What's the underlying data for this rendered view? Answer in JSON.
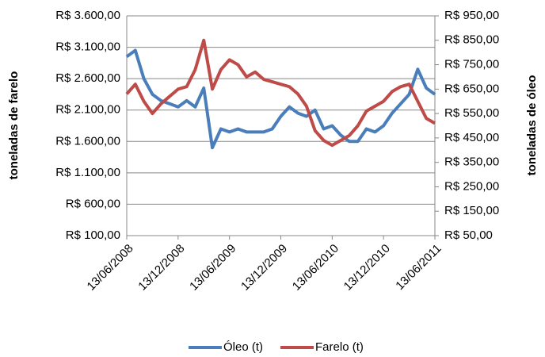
{
  "chart_data": {
    "type": "line",
    "y_label": "toneladas de farelo",
    "y2_label": "toneladas de óleo",
    "categories": [
      "13/06/2008",
      null,
      null,
      null,
      null,
      null,
      "13/12/2008",
      null,
      null,
      null,
      null,
      null,
      "13/06/2009",
      null,
      null,
      null,
      null,
      null,
      "13/12/2009",
      null,
      null,
      null,
      null,
      null,
      "13/06/2010",
      null,
      null,
      null,
      null,
      null,
      "13/12/2010",
      null,
      null,
      null,
      null,
      null,
      "13/06/2011"
    ],
    "series": [
      {
        "name": "Óleo (t)",
        "color": "#4a7ebb",
        "axis": "y",
        "values": [
          2950,
          3050,
          2600,
          2350,
          2250,
          2200,
          2150,
          2250,
          2150,
          2450,
          1500,
          1800,
          1750,
          1800,
          1750,
          1750,
          1750,
          1800,
          2000,
          2150,
          2050,
          2000,
          2100,
          1800,
          1850,
          1700,
          1600,
          1600,
          1800,
          1750,
          1850,
          2050,
          2200,
          2350,
          2750,
          2450,
          2350
        ]
      },
      {
        "name": "Farelo (t)",
        "color": "#be4b48",
        "axis": "y2",
        "values": [
          630,
          670,
          600,
          550,
          590,
          620,
          650,
          660,
          730,
          850,
          650,
          730,
          770,
          750,
          700,
          720,
          690,
          680,
          670,
          660,
          630,
          580,
          480,
          440,
          420,
          440,
          460,
          500,
          560,
          580,
          600,
          640,
          660,
          670,
          600,
          530,
          510
        ]
      }
    ],
    "ylim": [
      100,
      3600
    ],
    "yticks": [
      {
        "value": 100,
        "label": "R$ 100,00"
      },
      {
        "value": 600,
        "label": "R$ 600,00"
      },
      {
        "value": 1100,
        "label": "R$ 1.100,00"
      },
      {
        "value": 1600,
        "label": "R$ 1.600,00"
      },
      {
        "value": 2100,
        "label": "R$ 2.100,00"
      },
      {
        "value": 2600,
        "label": "R$ 2.600,00"
      },
      {
        "value": 3100,
        "label": "R$ 3.100,00"
      },
      {
        "value": 3600,
        "label": "R$ 3.600,00"
      }
    ],
    "y2lim": [
      50,
      950
    ],
    "y2ticks": [
      {
        "value": 50,
        "label": "R$ 50,00"
      },
      {
        "value": 150,
        "label": "R$ 150,00"
      },
      {
        "value": 250,
        "label": "R$ 250,00"
      },
      {
        "value": 350,
        "label": "R$ 350,00"
      },
      {
        "value": 450,
        "label": "R$ 450,00"
      },
      {
        "value": 550,
        "label": "R$ 550,00"
      },
      {
        "value": 650,
        "label": "R$ 650,00"
      },
      {
        "value": 750,
        "label": "R$ 750,00"
      },
      {
        "value": 850,
        "label": "R$ 850,00"
      },
      {
        "value": 950,
        "label": "R$ 950,00"
      }
    ],
    "grid": true,
    "legend": "bottom"
  }
}
